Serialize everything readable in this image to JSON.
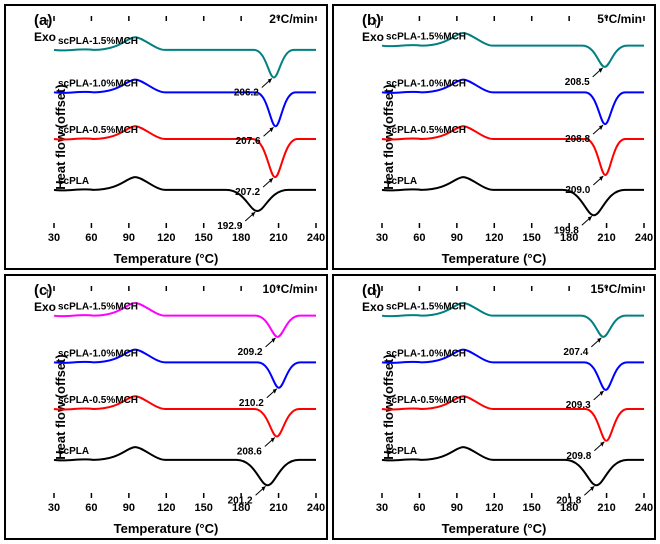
{
  "figure": {
    "cols": 2,
    "rows": 2,
    "background_color": "#ffffff",
    "border_color": "#000000",
    "axis": {
      "xlabel": "Temperature (°C)",
      "ylabel": "Heat flow (offset)",
      "xlabel_fontsize": 13,
      "ylabel_fontsize": 13,
      "tick_fontsize": 11,
      "xlim": [
        30,
        240
      ],
      "xtick_step": 30,
      "xticks": [
        30,
        60,
        90,
        120,
        150,
        180,
        210,
        240
      ]
    },
    "exo_label": "Exo",
    "series_common": {
      "line_width": 2,
      "names": [
        "scPLA",
        "scPLA-0.5%MCH",
        "scPLA-1.0%MCH",
        "scPLA-1.5%MCH"
      ]
    },
    "panels": [
      {
        "letter": "(a)",
        "rate": "2°C/min",
        "colors": [
          "#000000",
          "#ff0000",
          "#0000ff",
          "#008080"
        ],
        "annotations": [
          {
            "series": "scPLA",
            "temp": 192.9,
            "text": "192.9"
          },
          {
            "series": "scPLA-0.5%MCH",
            "temp": 207.2,
            "text": "207.2"
          },
          {
            "series": "scPLA-1.0%MCH",
            "temp": 207.6,
            "text": "207.6"
          },
          {
            "series": "scPLA-1.5%MCH",
            "temp": 206.2,
            "text": "206.2"
          }
        ],
        "curves": [
          {
            "baseline": 0.18,
            "dip_x": 192.9,
            "dip_depth": 0.1,
            "dip_width": 25,
            "label_y_offset": 0
          },
          {
            "baseline": 0.42,
            "dip_x": 207.2,
            "dip_depth": 0.18,
            "dip_width": 18,
            "label_y_offset": 0
          },
          {
            "baseline": 0.64,
            "dip_x": 207.6,
            "dip_depth": 0.16,
            "dip_width": 16,
            "label_y_offset": 0
          },
          {
            "baseline": 0.84,
            "dip_x": 206.2,
            "dip_depth": 0.13,
            "dip_width": 16,
            "label_y_offset": 0
          }
        ]
      },
      {
        "letter": "(b)",
        "rate": "5°C/min",
        "colors": [
          "#000000",
          "#ff0000",
          "#0000ff",
          "#008080"
        ],
        "annotations": [
          {
            "series": "scPLA",
            "temp": 199.8,
            "text": "199.8"
          },
          {
            "series": "scPLA-0.5%MCH",
            "temp": 209.0,
            "text": "209.0"
          },
          {
            "series": "scPLA-1.0%MCH",
            "temp": 208.8,
            "text": "208.8"
          },
          {
            "series": "scPLA-1.5%MCH",
            "temp": 208.5,
            "text": "208.5"
          }
        ],
        "curves": [
          {
            "baseline": 0.18,
            "dip_x": 199.8,
            "dip_depth": 0.12,
            "dip_width": 25,
            "label_y_offset": 0
          },
          {
            "baseline": 0.42,
            "dip_x": 209.0,
            "dip_depth": 0.17,
            "dip_width": 16,
            "label_y_offset": 0
          },
          {
            "baseline": 0.64,
            "dip_x": 208.8,
            "dip_depth": 0.15,
            "dip_width": 16,
            "label_y_offset": 0
          },
          {
            "baseline": 0.86,
            "dip_x": 208.5,
            "dip_depth": 0.1,
            "dip_width": 18,
            "label_y_offset": 0
          }
        ]
      },
      {
        "letter": "(c)",
        "rate": "10°C/min",
        "colors": [
          "#000000",
          "#ff0000",
          "#0000ff",
          "#ff00ff"
        ],
        "annotations": [
          {
            "series": "scPLA",
            "temp": 201.2,
            "text": "201.2"
          },
          {
            "series": "scPLA-0.5%MCH",
            "temp": 208.6,
            "text": "208.6"
          },
          {
            "series": "scPLA-1.0%MCH",
            "temp": 210.2,
            "text": "210.2"
          },
          {
            "series": "scPLA-1.5%MCH",
            "temp": 209.2,
            "text": "209.2"
          }
        ],
        "curves": [
          {
            "baseline": 0.18,
            "dip_x": 201.2,
            "dip_depth": 0.12,
            "dip_width": 25,
            "label_y_offset": 0
          },
          {
            "baseline": 0.42,
            "dip_x": 208.6,
            "dip_depth": 0.13,
            "dip_width": 18,
            "label_y_offset": 0
          },
          {
            "baseline": 0.64,
            "dip_x": 210.2,
            "dip_depth": 0.12,
            "dip_width": 17,
            "label_y_offset": 0
          },
          {
            "baseline": 0.86,
            "dip_x": 209.2,
            "dip_depth": 0.1,
            "dip_width": 18,
            "label_y_offset": 0
          }
        ]
      },
      {
        "letter": "(d)",
        "rate": "15°C/min",
        "colors": [
          "#000000",
          "#ff0000",
          "#0000ff",
          "#008080"
        ],
        "annotations": [
          {
            "series": "scPLA",
            "temp": 201.8,
            "text": "201.8"
          },
          {
            "series": "scPLA-0.5%MCH",
            "temp": 209.8,
            "text": "209.8"
          },
          {
            "series": "scPLA-1.0%MCH",
            "temp": 209.3,
            "text": "209.3"
          },
          {
            "series": "scPLA-1.5%MCH",
            "temp": 207.4,
            "text": "207.4"
          }
        ],
        "curves": [
          {
            "baseline": 0.18,
            "dip_x": 201.8,
            "dip_depth": 0.12,
            "dip_width": 25,
            "label_y_offset": 0
          },
          {
            "baseline": 0.42,
            "dip_x": 209.8,
            "dip_depth": 0.15,
            "dip_width": 17,
            "label_y_offset": 0
          },
          {
            "baseline": 0.64,
            "dip_x": 209.3,
            "dip_depth": 0.13,
            "dip_width": 17,
            "label_y_offset": 0
          },
          {
            "baseline": 0.86,
            "dip_x": 207.4,
            "dip_depth": 0.1,
            "dip_width": 18,
            "label_y_offset": 0
          }
        ]
      }
    ]
  }
}
